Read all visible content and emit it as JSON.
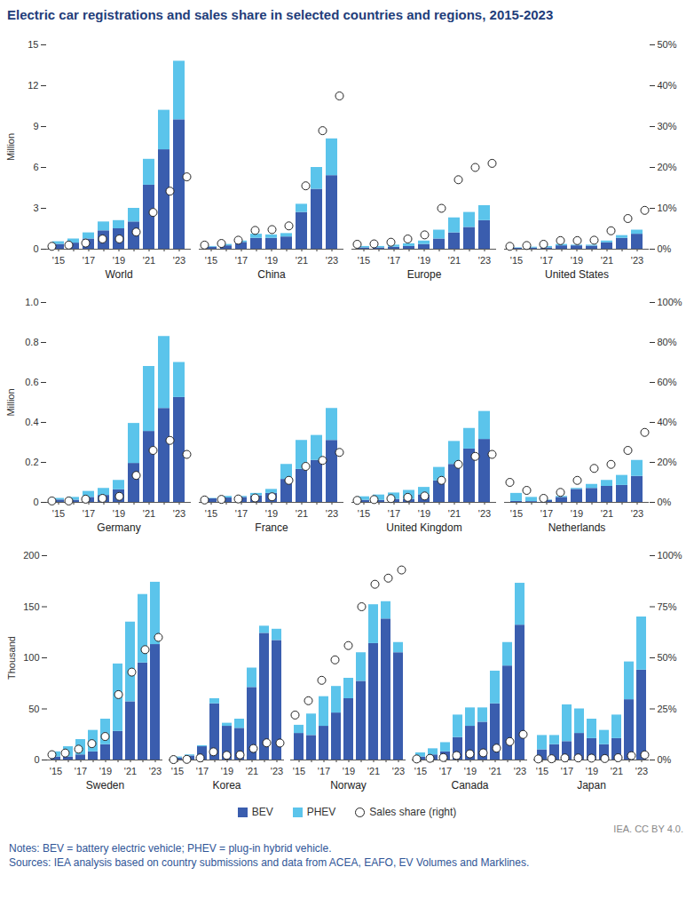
{
  "title": "Electric car registrations and sales share in selected countries and regions, 2015-2023",
  "notes": "Notes: BEV = battery electric vehicle; PHEV = plug-in hybrid vehicle.",
  "sources": "Sources: IEA analysis based on country submissions and data from ACEA, EAFO, EV Volumes and Marklines.",
  "credit": "IEA. CC BY 4.0.",
  "chart_data": [
    {
      "type": "bar",
      "stacked": true,
      "ylabel": "Million",
      "categories": [
        "'15",
        null,
        "'17",
        null,
        "'19",
        null,
        "'21",
        null,
        "'23"
      ],
      "ylim": [
        0,
        15
      ],
      "yticks": [
        0,
        3,
        6,
        9,
        12,
        15
      ],
      "y2lim": [
        0,
        50
      ],
      "y2ticks": [
        {
          "value": 0,
          "label": "0%"
        },
        {
          "value": 10,
          "label": "10%"
        },
        {
          "value": 20,
          "label": "20%"
        },
        {
          "value": 30,
          "label": "30%"
        },
        {
          "value": 40,
          "label": "40%"
        },
        {
          "value": 50,
          "label": "50%"
        }
      ],
      "groups": [
        {
          "name": "World",
          "series": [
            {
              "name": "BEV",
              "color": "#3A5DAE",
              "values": [
                0.35,
                0.45,
                0.75,
                1.35,
                1.5,
                2.0,
                4.7,
                7.3,
                9.5
              ]
            },
            {
              "name": "PHEV",
              "color": "#5BC4EB",
              "values": [
                0.2,
                0.3,
                0.45,
                0.65,
                0.6,
                1.0,
                1.9,
                2.9,
                4.3
              ]
            },
            {
              "name": "Sales share (right)",
              "type": "scatter",
              "axis": "y2",
              "marker": "circle",
              "color": "#ffffff",
              "values": [
                0.7,
                1.0,
                1.5,
                2.5,
                2.5,
                4.2,
                9,
                14.2,
                17.7
              ]
            }
          ]
        },
        {
          "name": "China",
          "series": [
            {
              "name": "BEV",
              "color": "#3A5DAE",
              "values": [
                0.15,
                0.25,
                0.5,
                0.8,
                0.8,
                0.9,
                2.7,
                4.4,
                5.4
              ]
            },
            {
              "name": "PHEV",
              "color": "#5BC4EB",
              "values": [
                0.05,
                0.1,
                0.1,
                0.3,
                0.25,
                0.25,
                0.6,
                1.6,
                2.7
              ]
            },
            {
              "name": "Sales share (right)",
              "type": "scatter",
              "axis": "y2",
              "marker": "circle",
              "color": "#ffffff",
              "values": [
                1,
                1.4,
                2.2,
                4.6,
                4.8,
                5.7,
                15.5,
                29,
                37.5
              ]
            }
          ]
        },
        {
          "name": "Europe",
          "series": [
            {
              "name": "BEV",
              "color": "#3A5DAE",
              "values": [
                0.1,
                0.1,
                0.15,
                0.2,
                0.35,
                0.75,
                1.2,
                1.6,
                2.1
              ]
            },
            {
              "name": "PHEV",
              "color": "#5BC4EB",
              "values": [
                0.1,
                0.1,
                0.15,
                0.2,
                0.25,
                0.65,
                1.1,
                1.1,
                1.1
              ]
            },
            {
              "name": "Sales share (right)",
              "type": "scatter",
              "axis": "y2",
              "marker": "circle",
              "color": "#ffffff",
              "values": [
                1.2,
                1.3,
                1.7,
                2.5,
                3.5,
                10,
                17,
                20,
                21
              ]
            }
          ]
        },
        {
          "name": "United States",
          "series": [
            {
              "name": "BEV",
              "color": "#3A5DAE",
              "values": [
                0.07,
                0.09,
                0.1,
                0.25,
                0.25,
                0.23,
                0.47,
                0.8,
                1.1
              ]
            },
            {
              "name": "PHEV",
              "color": "#5BC4EB",
              "values": [
                0.03,
                0.06,
                0.1,
                0.1,
                0.05,
                0.07,
                0.13,
                0.2,
                0.3
              ]
            },
            {
              "name": "Sales share (right)",
              "type": "scatter",
              "axis": "y2",
              "marker": "circle",
              "color": "#ffffff",
              "values": [
                0.7,
                0.9,
                1.2,
                2.1,
                2.1,
                2.2,
                4.5,
                7.5,
                9.5
              ]
            }
          ]
        }
      ]
    },
    {
      "type": "bar",
      "stacked": true,
      "ylabel": "Million",
      "categories": [
        "'15",
        null,
        "'17",
        null,
        "'19",
        null,
        "'21",
        null,
        "'23"
      ],
      "ylim": [
        0,
        1
      ],
      "yticks": [
        0,
        0.2,
        0.4,
        0.6,
        0.8,
        {
          "value": 1,
          "label": "1.0"
        }
      ],
      "y2lim": [
        0,
        100
      ],
      "y2ticks": [
        {
          "value": 0,
          "label": "0%"
        },
        {
          "value": 20,
          "label": "20%"
        },
        {
          "value": 40,
          "label": "40%"
        },
        {
          "value": 60,
          "label": "60%"
        },
        {
          "value": 80,
          "label": "80%"
        },
        {
          "value": 100,
          "label": "100%"
        }
      ],
      "groups": [
        {
          "name": "Germany",
          "series": [
            {
              "name": "BEV",
              "color": "#3A5DAE",
              "values": [
                0.012,
                0.011,
                0.025,
                0.035,
                0.063,
                0.195,
                0.355,
                0.47,
                0.525
              ]
            },
            {
              "name": "PHEV",
              "color": "#5BC4EB",
              "values": [
                0.008,
                0.014,
                0.03,
                0.035,
                0.047,
                0.2,
                0.325,
                0.36,
                0.175
              ]
            },
            {
              "name": "Sales share (right)",
              "type": "scatter",
              "axis": "y2",
              "marker": "circle",
              "color": "#ffffff",
              "values": [
                0.7,
                0.7,
                1.6,
                2,
                3,
                13.5,
                26,
                31,
                24
              ]
            }
          ]
        },
        {
          "name": "France",
          "series": [
            {
              "name": "BEV",
              "color": "#3A5DAE",
              "values": [
                0.018,
                0.022,
                0.025,
                0.033,
                0.045,
                0.115,
                0.165,
                0.21,
                0.31
              ]
            },
            {
              "name": "PHEV",
              "color": "#5BC4EB",
              "values": [
                0.002,
                0.008,
                0.005,
                0.012,
                0.02,
                0.075,
                0.145,
                0.125,
                0.16
              ]
            },
            {
              "name": "Sales share (right)",
              "type": "scatter",
              "axis": "y2",
              "marker": "circle",
              "color": "#ffffff",
              "values": [
                1.2,
                1.5,
                1.7,
                2.2,
                2.8,
                11,
                18,
                21,
                25
              ]
            }
          ]
        },
        {
          "name": "United Kingdom",
          "series": [
            {
              "name": "BEV",
              "color": "#3A5DAE",
              "values": [
                0.01,
                0.01,
                0.015,
                0.015,
                0.038,
                0.108,
                0.19,
                0.267,
                0.315
              ]
            },
            {
              "name": "PHEV",
              "color": "#5BC4EB",
              "values": [
                0.018,
                0.027,
                0.032,
                0.045,
                0.037,
                0.067,
                0.115,
                0.103,
                0.14
              ]
            },
            {
              "name": "Sales share (right)",
              "type": "scatter",
              "axis": "y2",
              "marker": "circle",
              "color": "#ffffff",
              "values": [
                1,
                1.4,
                1.9,
                2.5,
                3.2,
                11,
                19,
                23,
                24
              ]
            }
          ]
        },
        {
          "name": "Netherlands",
          "series": [
            {
              "name": "BEV",
              "color": "#3A5DAE",
              "values": [
                0.005,
                0.004,
                0.01,
                0.025,
                0.065,
                0.07,
                0.08,
                0.085,
                0.13
              ]
            },
            {
              "name": "PHEV",
              "color": "#5BC4EB",
              "values": [
                0.04,
                0.021,
                0.002,
                0.005,
                0.005,
                0.02,
                0.03,
                0.05,
                0.08
              ]
            },
            {
              "name": "Sales share (right)",
              "type": "scatter",
              "axis": "y2",
              "marker": "circle",
              "color": "#ffffff",
              "values": [
                10,
                6,
                2,
                5,
                11,
                17,
                19,
                26,
                35
              ]
            }
          ]
        }
      ]
    },
    {
      "type": "bar",
      "stacked": true,
      "ylabel": "Thousand",
      "categories": [
        "'15",
        null,
        "'17",
        null,
        "'19",
        null,
        "'21",
        null,
        "'23"
      ],
      "ylim": [
        0,
        200
      ],
      "yticks": [
        0,
        50,
        100,
        150,
        200
      ],
      "y2lim": [
        0,
        100
      ],
      "y2ticks": [
        {
          "value": 0,
          "label": "0%"
        },
        {
          "value": 25,
          "label": "25%"
        },
        {
          "value": 50,
          "label": "50%"
        },
        {
          "value": 75,
          "label": "75%"
        },
        {
          "value": 100,
          "label": "100%"
        }
      ],
      "groups": [
        {
          "name": "Sweden",
          "series": [
            {
              "name": "BEV",
              "color": "#3A5DAE",
              "values": [
                3,
                3,
                5,
                8,
                15,
                28,
                57,
                95,
                113
              ]
            },
            {
              "name": "PHEV",
              "color": "#5BC4EB",
              "values": [
                5,
                10,
                15,
                21,
                25,
                66,
                78,
                67,
                61
              ]
            },
            {
              "name": "Sales share (right)",
              "type": "scatter",
              "axis": "y2",
              "marker": "circle",
              "color": "#ffffff",
              "values": [
                2.6,
                3.4,
                5.3,
                8,
                11.5,
                32,
                43,
                54,
                60
              ]
            }
          ]
        },
        {
          "name": "Korea",
          "series": [
            {
              "name": "BEV",
              "color": "#3A5DAE",
              "values": [
                2,
                4,
                13,
                55,
                33,
                31,
                71,
                124,
                117
              ]
            },
            {
              "name": "PHEV",
              "color": "#5BC4EB",
              "values": [
                1,
                1,
                1,
                5,
                3,
                9,
                19,
                7,
                11
              ]
            },
            {
              "name": "Sales share (right)",
              "type": "scatter",
              "axis": "y2",
              "marker": "circle",
              "color": "#ffffff",
              "values": [
                0.2,
                0.3,
                1,
                4,
                2.3,
                2.5,
                5.6,
                8.4,
                8.3
              ]
            }
          ]
        },
        {
          "name": "Norway",
          "series": [
            {
              "name": "BEV",
              "color": "#3A5DAE",
              "values": [
                26,
                24,
                33,
                46,
                60,
                77,
                114,
                138,
                105
              ]
            },
            {
              "name": "PHEV",
              "color": "#5BC4EB",
              "values": [
                8,
                21,
                29,
                26,
                20,
                28,
                38,
                17,
                10
              ]
            },
            {
              "name": "Sales share (right)",
              "type": "scatter",
              "axis": "y2",
              "marker": "circle",
              "color": "#ffffff",
              "values": [
                22,
                29,
                39,
                49,
                56,
                75,
                86,
                89,
                93
              ]
            }
          ]
        },
        {
          "name": "Canada",
          "series": [
            {
              "name": "BEV",
              "color": "#3A5DAE",
              "values": [
                3,
                5,
                8,
                22,
                33,
                37,
                55,
                92,
                132
              ]
            },
            {
              "name": "PHEV",
              "color": "#5BC4EB",
              "values": [
                4,
                6,
                9,
                22,
                18,
                14,
                32,
                23,
                41
              ]
            },
            {
              "name": "Sales share (right)",
              "type": "scatter",
              "axis": "y2",
              "marker": "circle",
              "color": "#ffffff",
              "values": [
                0.5,
                0.8,
                1.2,
                2.2,
                3,
                3.5,
                5.8,
                9,
                12.5
              ]
            }
          ]
        },
        {
          "name": "Japan",
          "series": [
            {
              "name": "BEV",
              "color": "#3A5DAE",
              "values": [
                10,
                15,
                18,
                26,
                21,
                15,
                21,
                59,
                88
              ]
            },
            {
              "name": "PHEV",
              "color": "#5BC4EB",
              "values": [
                14,
                9,
                36,
                24,
                19,
                14,
                23,
                37,
                52
              ]
            },
            {
              "name": "Sales share (right)",
              "type": "scatter",
              "axis": "y2",
              "marker": "circle",
              "color": "#ffffff",
              "values": [
                0.5,
                0.6,
                1,
                1,
                0.9,
                0.7,
                1.1,
                2.1,
                2.5
              ]
            }
          ]
        }
      ]
    }
  ]
}
